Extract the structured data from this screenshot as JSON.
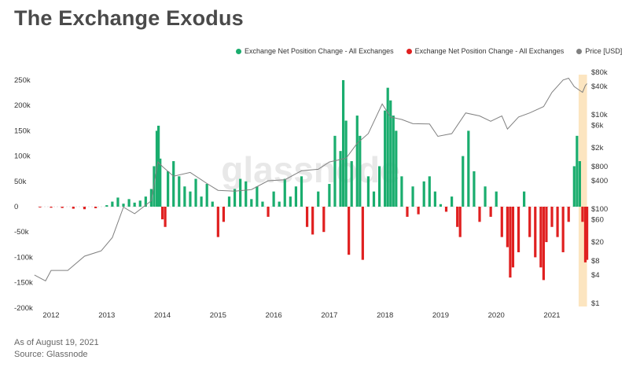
{
  "title": "The Exchange Exodus",
  "footer": {
    "as_of": "As of August 19, 2021",
    "source": "Source: Glassnode"
  },
  "watermark": "glassnode",
  "legend": [
    {
      "label": "Exchange Net Position Change - All Exchanges",
      "color": "#1aad6e"
    },
    {
      "label": "Exchange Net Position Change - All Exchanges",
      "color": "#e02020"
    },
    {
      "label": "Price [USD]",
      "color": "#808080"
    }
  ],
  "chart_data": {
    "type": "bar",
    "xlabel": "",
    "ylabel": "",
    "x_ticks": [
      "2012",
      "2013",
      "2014",
      "2015",
      "2016",
      "2017",
      "2018",
      "2019",
      "2020",
      "2021"
    ],
    "y_left_ticks": [
      "250k",
      "200k",
      "150k",
      "100k",
      "50k",
      "0",
      "-50k",
      "-100k",
      "-150k",
      "-200k"
    ],
    "y_left_range": [
      -200000,
      250000
    ],
    "y_right_ticks": [
      "$80k",
      "$40k",
      "$10k",
      "$6k",
      "$2k",
      "$800",
      "$400",
      "$100",
      "$60",
      "$20",
      "$8",
      "$4",
      "$1"
    ],
    "y_right_scale": "log",
    "y_right_range": [
      1,
      80000
    ],
    "highlight_period": {
      "start": "2021-06-25",
      "end": "2021-08-19",
      "color": "#fce5c0"
    },
    "series": [
      {
        "name": "Exchange Net Position Change - All Exchanges",
        "kind": "bar",
        "positive_color": "#1aad6e",
        "negative_color": "#e02020",
        "x_unit": "year",
        "points": [
          [
            2011.8,
            -1500
          ],
          [
            2012.0,
            -2000
          ],
          [
            2012.2,
            -2500
          ],
          [
            2012.4,
            -4000
          ],
          [
            2012.6,
            -5000
          ],
          [
            2012.8,
            -3000
          ],
          [
            2013.0,
            3000
          ],
          [
            2013.1,
            10000
          ],
          [
            2013.2,
            18000
          ],
          [
            2013.3,
            6000
          ],
          [
            2013.4,
            15000
          ],
          [
            2013.5,
            8000
          ],
          [
            2013.6,
            12000
          ],
          [
            2013.7,
            20000
          ],
          [
            2013.8,
            35000
          ],
          [
            2013.85,
            80000
          ],
          [
            2013.9,
            150000
          ],
          [
            2013.93,
            160000
          ],
          [
            2013.96,
            95000
          ],
          [
            2014.0,
            -25000
          ],
          [
            2014.05,
            -40000
          ],
          [
            2014.1,
            70000
          ],
          [
            2014.2,
            90000
          ],
          [
            2014.3,
            60000
          ],
          [
            2014.4,
            40000
          ],
          [
            2014.5,
            30000
          ],
          [
            2014.6,
            55000
          ],
          [
            2014.7,
            20000
          ],
          [
            2014.8,
            45000
          ],
          [
            2014.9,
            10000
          ],
          [
            2015.0,
            -60000
          ],
          [
            2015.1,
            -30000
          ],
          [
            2015.2,
            20000
          ],
          [
            2015.3,
            35000
          ],
          [
            2015.4,
            55000
          ],
          [
            2015.5,
            50000
          ],
          [
            2015.6,
            15000
          ],
          [
            2015.7,
            40000
          ],
          [
            2015.8,
            10000
          ],
          [
            2015.9,
            -20000
          ],
          [
            2016.0,
            30000
          ],
          [
            2016.1,
            10000
          ],
          [
            2016.2,
            55000
          ],
          [
            2016.3,
            20000
          ],
          [
            2016.4,
            40000
          ],
          [
            2016.5,
            60000
          ],
          [
            2016.6,
            -40000
          ],
          [
            2016.7,
            -55000
          ],
          [
            2016.8,
            30000
          ],
          [
            2016.9,
            -50000
          ],
          [
            2017.0,
            45000
          ],
          [
            2017.1,
            140000
          ],
          [
            2017.2,
            110000
          ],
          [
            2017.25,
            250000
          ],
          [
            2017.3,
            170000
          ],
          [
            2017.35,
            -95000
          ],
          [
            2017.4,
            90000
          ],
          [
            2017.5,
            180000
          ],
          [
            2017.55,
            140000
          ],
          [
            2017.6,
            -105000
          ],
          [
            2017.7,
            60000
          ],
          [
            2017.8,
            30000
          ],
          [
            2017.9,
            80000
          ],
          [
            2018.0,
            190000
          ],
          [
            2018.05,
            235000
          ],
          [
            2018.1,
            210000
          ],
          [
            2018.15,
            180000
          ],
          [
            2018.2,
            150000
          ],
          [
            2018.3,
            60000
          ],
          [
            2018.4,
            -20000
          ],
          [
            2018.5,
            40000
          ],
          [
            2018.6,
            -15000
          ],
          [
            2018.7,
            50000
          ],
          [
            2018.8,
            60000
          ],
          [
            2018.9,
            30000
          ],
          [
            2019.0,
            5000
          ],
          [
            2019.1,
            -10000
          ],
          [
            2019.2,
            20000
          ],
          [
            2019.3,
            -40000
          ],
          [
            2019.35,
            -60000
          ],
          [
            2019.4,
            100000
          ],
          [
            2019.5,
            150000
          ],
          [
            2019.6,
            70000
          ],
          [
            2019.7,
            -30000
          ],
          [
            2019.8,
            40000
          ],
          [
            2019.9,
            -20000
          ],
          [
            2020.0,
            30000
          ],
          [
            2020.1,
            -60000
          ],
          [
            2020.2,
            -80000
          ],
          [
            2020.25,
            -140000
          ],
          [
            2020.3,
            -120000
          ],
          [
            2020.4,
            -90000
          ],
          [
            2020.5,
            30000
          ],
          [
            2020.6,
            -60000
          ],
          [
            2020.7,
            -100000
          ],
          [
            2020.8,
            -120000
          ],
          [
            2020.85,
            -145000
          ],
          [
            2020.9,
            -70000
          ],
          [
            2021.0,
            -40000
          ],
          [
            2021.1,
            -60000
          ],
          [
            2021.2,
            -90000
          ],
          [
            2021.3,
            -30000
          ],
          [
            2021.4,
            80000
          ],
          [
            2021.45,
            140000
          ],
          [
            2021.5,
            90000
          ],
          [
            2021.55,
            -30000
          ],
          [
            2021.6,
            -110000
          ],
          [
            2021.63,
            -105000
          ]
        ]
      },
      {
        "name": "Price [USD]",
        "kind": "line",
        "color": "#808080",
        "x_unit": "year",
        "points": [
          [
            2011.7,
            4
          ],
          [
            2011.9,
            3
          ],
          [
            2012.0,
            5
          ],
          [
            2012.3,
            5
          ],
          [
            2012.6,
            10
          ],
          [
            2012.9,
            13
          ],
          [
            2013.1,
            25
          ],
          [
            2013.3,
            110
          ],
          [
            2013.5,
            80
          ],
          [
            2013.8,
            150
          ],
          [
            2013.92,
            1000
          ],
          [
            2014.0,
            800
          ],
          [
            2014.2,
            500
          ],
          [
            2014.5,
            600
          ],
          [
            2014.8,
            350
          ],
          [
            2015.0,
            250
          ],
          [
            2015.3,
            240
          ],
          [
            2015.6,
            260
          ],
          [
            2015.9,
            400
          ],
          [
            2016.2,
            420
          ],
          [
            2016.5,
            650
          ],
          [
            2016.8,
            700
          ],
          [
            2017.0,
            1000
          ],
          [
            2017.3,
            1200
          ],
          [
            2017.5,
            2500
          ],
          [
            2017.7,
            4000
          ],
          [
            2017.95,
            17000
          ],
          [
            2018.1,
            9000
          ],
          [
            2018.3,
            8000
          ],
          [
            2018.5,
            6500
          ],
          [
            2018.8,
            6400
          ],
          [
            2018.95,
            3500
          ],
          [
            2019.2,
            4000
          ],
          [
            2019.45,
            11000
          ],
          [
            2019.7,
            9500
          ],
          [
            2019.9,
            7300
          ],
          [
            2020.1,
            9500
          ],
          [
            2020.2,
            5000
          ],
          [
            2020.4,
            9000
          ],
          [
            2020.6,
            11000
          ],
          [
            2020.85,
            15000
          ],
          [
            2021.0,
            30000
          ],
          [
            2021.2,
            55000
          ],
          [
            2021.3,
            60000
          ],
          [
            2021.4,
            40000
          ],
          [
            2021.5,
            33000
          ],
          [
            2021.55,
            30000
          ],
          [
            2021.6,
            42000
          ],
          [
            2021.63,
            46000
          ]
        ]
      }
    ]
  }
}
